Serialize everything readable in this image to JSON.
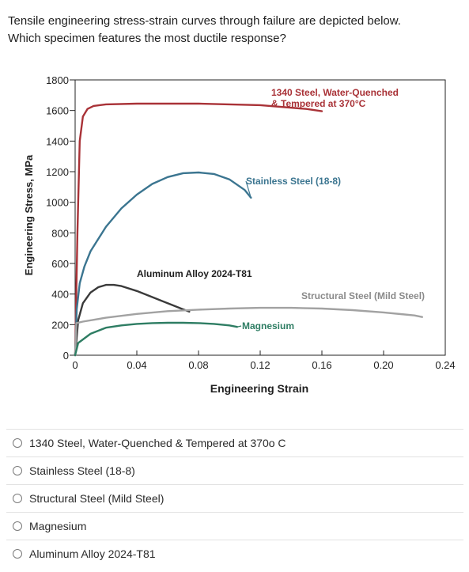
{
  "question": {
    "line1": "Tensile engineering stress-strain curves through failure are depicted below.",
    "line2": "Which specimen features the most ductile response?"
  },
  "chart_data": {
    "type": "line",
    "xlabel": "Engineering Strain",
    "ylabel": "Engineering Stress, MPa",
    "xlim": [
      0,
      0.24
    ],
    "ylim": [
      0,
      1800
    ],
    "x_ticks": [
      0,
      0.04,
      0.08,
      0.12,
      0.16,
      0.2,
      0.24
    ],
    "x_tick_labels": [
      "0",
      "0.04",
      "0.08",
      "0.12",
      "0.16",
      "0.20",
      "0.24"
    ],
    "y_ticks": [
      0,
      200,
      400,
      600,
      800,
      1000,
      1200,
      1400,
      1600,
      1800
    ],
    "y_tick_labels": [
      "0",
      "200",
      "400",
      "600",
      "800",
      "1000",
      "1200",
      "1400",
      "1600",
      "1800"
    ],
    "grid": false,
    "series": [
      {
        "name": "1340 Steel, Water-Quenched & Tempered at 370oC",
        "label_lines": [
          "1340 Steel, Water-Quenched",
          "& Tempered at 370°C"
        ],
        "color": "#a93237",
        "x": [
          0,
          0.0015,
          0.003,
          0.005,
          0.008,
          0.012,
          0.02,
          0.04,
          0.08,
          0.12,
          0.15,
          0.16
        ],
        "y": [
          0,
          800,
          1400,
          1560,
          1610,
          1630,
          1640,
          1645,
          1645,
          1635,
          1610,
          1595
        ]
      },
      {
        "name": "Stainless Steel (18-8)",
        "label_lines": [
          "Stainless Steel (18-8)"
        ],
        "color": "#3b7590",
        "x": [
          0,
          0.001,
          0.003,
          0.006,
          0.01,
          0.02,
          0.03,
          0.04,
          0.05,
          0.06,
          0.07,
          0.08,
          0.09,
          0.1,
          0.11,
          0.114
        ],
        "y": [
          0,
          300,
          470,
          580,
          680,
          840,
          960,
          1050,
          1120,
          1165,
          1190,
          1195,
          1185,
          1150,
          1080,
          1030
        ]
      },
      {
        "name": "Aluminum Alloy 2024-T81",
        "label_lines": [
          "Aluminum Alloy 2024-T81"
        ],
        "color": "#3a3a3a",
        "x": [
          0,
          0.002,
          0.005,
          0.01,
          0.015,
          0.02,
          0.025,
          0.03,
          0.04,
          0.05,
          0.06,
          0.07,
          0.074
        ],
        "y": [
          0,
          230,
          340,
          410,
          445,
          460,
          460,
          452,
          420,
          380,
          340,
          300,
          285
        ]
      },
      {
        "name": "Structural Steel (Mild Steel)",
        "label_lines": [
          "Structural Steel (Mild Steel)"
        ],
        "color": "#a2a2a2",
        "x": [
          0,
          0.0008,
          0.005,
          0.02,
          0.04,
          0.06,
          0.08,
          0.1,
          0.12,
          0.14,
          0.16,
          0.18,
          0.2,
          0.22,
          0.225
        ],
        "y": [
          0,
          210,
          220,
          245,
          270,
          288,
          298,
          305,
          310,
          310,
          305,
          295,
          280,
          260,
          250
        ]
      },
      {
        "name": "Magnesium",
        "label_lines": [
          "Magnesium"
        ],
        "color": "#2e7d63",
        "x": [
          0,
          0.002,
          0.01,
          0.02,
          0.03,
          0.04,
          0.05,
          0.06,
          0.07,
          0.08,
          0.09,
          0.1,
          0.105
        ],
        "y": [
          0,
          80,
          140,
          180,
          195,
          205,
          210,
          212,
          212,
          210,
          205,
          195,
          185
        ]
      }
    ]
  },
  "options": [
    {
      "label": "1340 Steel, Water-Quenched & Tempered at 370o C"
    },
    {
      "label": "Stainless Steel (18-8)"
    },
    {
      "label": "Structural Steel (Mild Steel)"
    },
    {
      "label": "Magnesium"
    },
    {
      "label": "Aluminum Alloy 2024-T81"
    }
  ]
}
